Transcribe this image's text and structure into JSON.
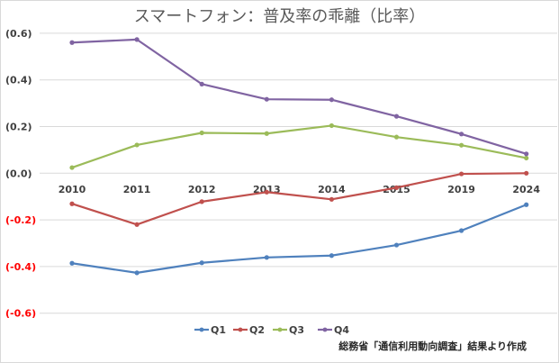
{
  "chart_data": {
    "type": "line",
    "title": "スマートフォン：普及率の乖離（比率）",
    "xlabel": "",
    "ylabel": "",
    "categories": [
      "2010",
      "2011",
      "2012",
      "2013",
      "2014",
      "2015",
      "2019",
      "2024"
    ],
    "ylim": [
      -0.6,
      0.6
    ],
    "yticks": [
      0.6,
      0.4,
      0.2,
      0.0,
      -0.2,
      -0.4,
      -0.6
    ],
    "ytick_labels": [
      "(0.6)",
      "(0.4)",
      "(0.2)",
      "(0.0)",
      "(-0.2)",
      "(-0.4)",
      "(-0.6)"
    ],
    "grid": true,
    "legend_position": "bottom",
    "series": [
      {
        "name": "Q1",
        "color": "#4F81BD",
        "values": [
          -0.386,
          -0.427,
          -0.384,
          -0.361,
          -0.353,
          -0.308,
          -0.246,
          -0.135
        ]
      },
      {
        "name": "Q2",
        "color": "#C0504D",
        "values": [
          -0.131,
          -0.22,
          -0.122,
          -0.081,
          -0.112,
          -0.062,
          -0.003,
          0.0
        ]
      },
      {
        "name": "Q3",
        "color": "#9BBB59",
        "values": [
          0.024,
          0.121,
          0.173,
          0.17,
          0.204,
          0.155,
          0.12,
          0.065
        ]
      },
      {
        "name": "Q4",
        "color": "#8064A2",
        "values": [
          0.56,
          0.573,
          0.382,
          0.317,
          0.315,
          0.244,
          0.168,
          0.083
        ]
      }
    ],
    "negative_label_color": "#FF0000",
    "positive_label_color": "#404040",
    "source_note": "総務省「通信利用動向調査」結果より作成"
  }
}
